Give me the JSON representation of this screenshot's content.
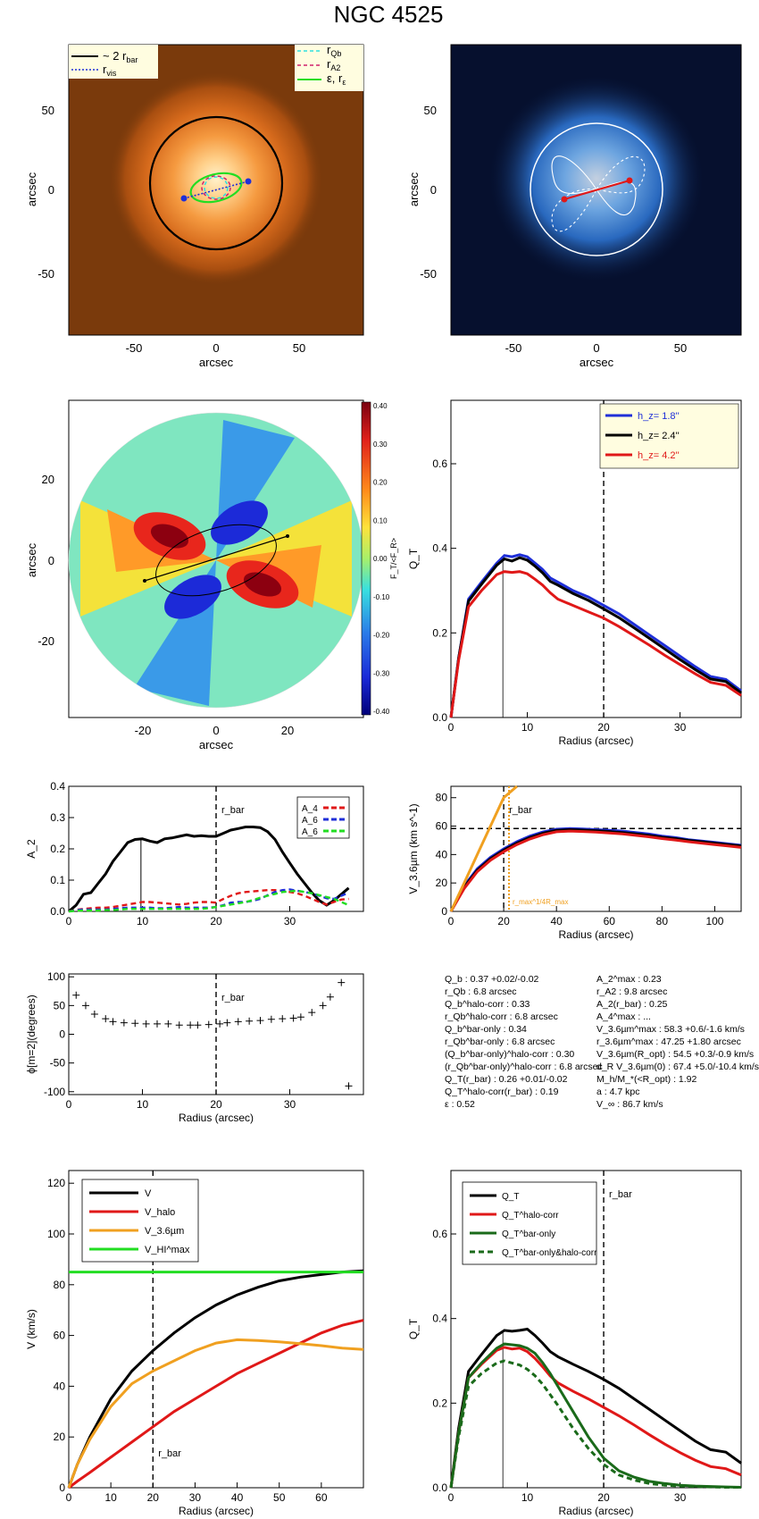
{
  "figure_title": "NGC 4525",
  "colors": {
    "black": "#000000",
    "blue": "#1f2fd8",
    "red": "#e01818",
    "green": "#22dd22",
    "orange": "#f0a020",
    "darkgreen": "#1a6a1a",
    "cyan": "#30e0e0",
    "magenta": "#d0206a"
  },
  "panels": {
    "p1": {
      "ylabel": "arcsec",
      "xlabel": "arcsec",
      "xticks": [
        "-50",
        "0",
        "50"
      ],
      "yticks": [
        "50",
        "0",
        "-50"
      ],
      "legend_left": [
        "~ 2 r",
        "bar",
        "r",
        "vis"
      ],
      "legend_right": [
        "r",
        "Qb",
        "r",
        "A2",
        "ε, r",
        "ε"
      ]
    },
    "p2": {
      "ylabel": "arcsec",
      "xlabel": "arcsec",
      "xticks": [
        "-50",
        "0",
        "50"
      ],
      "yticks": [
        "50",
        "0",
        "-50"
      ]
    },
    "p3": {
      "ylabel": "arcsec",
      "xlabel": "arcsec",
      "xticks": [
        "-20",
        "0",
        "20"
      ],
      "yticks": [
        "20",
        "0",
        "-20"
      ],
      "colorbar_ticks": [
        "0.40",
        "0.30",
        "0.20",
        "0.10",
        "0.00",
        "-0.10",
        "-0.20",
        "-0.30",
        "-0.40"
      ],
      "colorbar_label": "F_T/<F_R>"
    },
    "p7_stats_left": [
      "Q_b :  0.37 +0.02/-0.02",
      "r_Qb :   6.8  arcsec",
      "Q_b^halo-corr :  0.33",
      "r_Qb^halo-corr :  6.8 arcsec",
      "Q_b^bar-only :  0.34",
      "r_Qb^bar-only :  6.8 arcsec",
      "(Q_b^bar-only)^halo-corr :  0.30",
      "(r_Qb^bar-only)^halo-corr :  6.8 arcsec",
      "Q_T(r_bar) :  0.26 +0.01/-0.02",
      "Q_T^halo-corr(r_bar) :  0.19",
      "ε :  0.52"
    ],
    "p7_stats_right": [
      "A_2^max :  0.23",
      "r_A2 :  9.8 arcsec",
      "A_2(r_bar) :  0.25",
      "A_4^max : ...",
      "V_3.6µm^max :  58.3 +0.6/-1.6 km/s",
      "r_3.6µm^max :  47.25 +1.80 arcsec",
      "V_3.6µm(R_opt) :  54.5 +0.3/-0.9 km/s",
      "d_R V_3.6µm(0) :  67.4 +5.0/-10.4 km/s/kpc",
      "M_h/M_*(<R_opt) :  1.92",
      "a :  4.7 kpc",
      "V_∞ :  86.7 km/s"
    ]
  },
  "chart_data": [
    {
      "type": "line",
      "panel": "QT vs radius (scale heights)",
      "xlabel": "Radius (arcsec)",
      "ylabel": "Q_T",
      "xlim": [
        0,
        38
      ],
      "ylim": [
        0,
        0.75
      ],
      "xticks": [
        0,
        10,
        20,
        30
      ],
      "yticks": [
        0.0,
        0.2,
        0.4,
        0.6
      ],
      "rbar": 20,
      "rbar_label": "r_bar",
      "qb_radius": 6.8,
      "x": [
        0,
        1,
        2.3,
        4,
        6,
        7,
        8,
        9,
        10,
        11,
        12,
        13,
        14,
        16,
        18,
        20,
        22,
        24,
        26,
        28,
        30,
        32,
        34,
        36,
        38
      ],
      "series": [
        {
          "name": "h_z= 1.8''",
          "color": "#1f2fd8",
          "values": [
            0,
            0.14,
            0.28,
            0.32,
            0.365,
            0.383,
            0.38,
            0.385,
            0.38,
            0.365,
            0.35,
            0.33,
            0.32,
            0.3,
            0.285,
            0.265,
            0.245,
            0.22,
            0.195,
            0.17,
            0.145,
            0.12,
            0.097,
            0.09,
            0.063
          ]
        },
        {
          "name": "h_z= 2.4''",
          "color": "#000000",
          "values": [
            0,
            0.14,
            0.275,
            0.315,
            0.36,
            0.375,
            0.37,
            0.378,
            0.372,
            0.358,
            0.342,
            0.322,
            0.313,
            0.293,
            0.277,
            0.257,
            0.236,
            0.212,
            0.187,
            0.162,
            0.137,
            0.113,
            0.091,
            0.085,
            0.058
          ]
        },
        {
          "name": "h_z= 4.2''",
          "color": "#e01818",
          "values": [
            0,
            0.135,
            0.262,
            0.3,
            0.338,
            0.345,
            0.343,
            0.345,
            0.34,
            0.327,
            0.313,
            0.295,
            0.28,
            0.265,
            0.25,
            0.235,
            0.215,
            0.193,
            0.171,
            0.147,
            0.125,
            0.103,
            0.083,
            0.076,
            0.052
          ]
        }
      ]
    },
    {
      "type": "line",
      "panel": "Fourier amplitudes",
      "xlabel": "",
      "ylabel": "A_2",
      "xlim": [
        0,
        40
      ],
      "ylim": [
        0,
        0.4
      ],
      "xticks": [
        0,
        10,
        20,
        30
      ],
      "yticks": [
        0.0,
        0.1,
        0.2,
        0.3,
        0.4
      ],
      "rbar": 20,
      "rbar_label": "r_bar",
      "a2_radius": 9.8,
      "x": [
        0,
        1,
        2,
        3,
        4,
        5,
        6,
        7,
        8,
        9,
        10,
        11,
        12,
        13,
        14,
        15,
        16,
        17,
        18,
        19,
        20,
        21,
        22,
        23,
        24,
        25,
        26,
        27,
        28,
        29,
        30,
        31,
        32,
        33,
        34,
        35,
        36,
        37,
        38
      ],
      "series": [
        {
          "name": "A_2",
          "color": "#000000",
          "values": [
            0,
            0.02,
            0.055,
            0.06,
            0.09,
            0.12,
            0.16,
            0.19,
            0.22,
            0.23,
            0.232,
            0.225,
            0.22,
            0.232,
            0.235,
            0.24,
            0.245,
            0.24,
            0.242,
            0.24,
            0.24,
            0.25,
            0.26,
            0.265,
            0.27,
            0.27,
            0.268,
            0.255,
            0.23,
            0.19,
            0.155,
            0.12,
            0.09,
            0.06,
            0.035,
            0.02,
            0.035,
            0.055,
            0.075
          ]
        },
        {
          "name": "A_4",
          "color": "#e01818",
          "values": [
            0,
            0.005,
            0.008,
            0.01,
            0.012,
            0.012,
            0.014,
            0.018,
            0.022,
            0.026,
            0.03,
            0.03,
            0.028,
            0.026,
            0.024,
            0.022,
            0.024,
            0.028,
            0.03,
            0.03,
            0.028,
            0.04,
            0.05,
            0.058,
            0.062,
            0.064,
            0.066,
            0.068,
            0.068,
            0.066,
            0.062,
            0.058,
            0.05,
            0.04,
            0.03,
            0.022,
            0.03,
            0.038,
            0.04
          ]
        },
        {
          "name": "A_6",
          "color": "#1f2fd8",
          "values": [
            0,
            0.004,
            0.006,
            0.006,
            0.006,
            0.006,
            0.008,
            0.01,
            0.012,
            0.012,
            0.012,
            0.012,
            0.01,
            0.01,
            0.012,
            0.014,
            0.012,
            0.012,
            0.012,
            0.012,
            0.014,
            0.02,
            0.028,
            0.03,
            0.03,
            0.034,
            0.04,
            0.052,
            0.062,
            0.068,
            0.07,
            0.066,
            0.062,
            0.058,
            0.05,
            0.042,
            0.04,
            0.05,
            0.06
          ]
        },
        {
          "name": "A_6",
          "color": "#22dd22",
          "values": [
            0,
            0.002,
            0.003,
            0.003,
            0.003,
            0.004,
            0.004,
            0.006,
            0.008,
            0.008,
            0.008,
            0.008,
            0.008,
            0.008,
            0.008,
            0.008,
            0.008,
            0.008,
            0.008,
            0.01,
            0.014,
            0.018,
            0.022,
            0.026,
            0.03,
            0.036,
            0.044,
            0.05,
            0.056,
            0.062,
            0.064,
            0.066,
            0.062,
            0.058,
            0.052,
            0.046,
            0.04,
            0.03,
            0.02
          ]
        }
      ]
    },
    {
      "type": "line",
      "panel": "Rotation curve 3.6um",
      "xlabel": "Radius (arcsec)",
      "ylabel": "V_3.6µm (km s^-1)",
      "xlim": [
        0,
        110
      ],
      "ylim": [
        0,
        88
      ],
      "xticks": [
        0,
        20,
        40,
        60,
        80,
        100
      ],
      "yticks": [
        0,
        20,
        40,
        60,
        80
      ],
      "rbar": 20,
      "rbar_label": "r_bar",
      "vmax": 58.3,
      "rmax_line": 22,
      "rmax_label": "r_max^1/4R_max",
      "x": [
        0,
        5,
        10,
        15,
        20,
        25,
        30,
        35,
        40,
        45,
        50,
        55,
        60,
        65,
        70,
        75,
        80,
        85,
        90,
        95,
        100,
        105,
        110
      ],
      "series": [
        {
          "name": "V_3.6µm",
          "color": "#1f2fd8",
          "values": [
            0,
            18,
            30,
            38,
            44,
            49,
            53,
            56,
            57.8,
            58.3,
            58,
            57.5,
            57,
            56.5,
            55.5,
            54.5,
            53,
            52,
            50.5,
            49.5,
            48.5,
            47.5,
            46.5
          ]
        },
        {
          "name": "V_3.6µm",
          "color": "#000000",
          "values": [
            0,
            17,
            29,
            37,
            43,
            48,
            52,
            55,
            57,
            57.5,
            57.2,
            56.8,
            56.2,
            55.5,
            54.5,
            53.5,
            52.2,
            51.2,
            50,
            49,
            48,
            47,
            46
          ]
        },
        {
          "name": "V_3.6µm",
          "color": "#e01818",
          "values": [
            0,
            16,
            28,
            36,
            42,
            47,
            51,
            54,
            56,
            56.5,
            56.2,
            55.8,
            55.2,
            54.5,
            53.5,
            52.5,
            51.2,
            50.2,
            49,
            48,
            47,
            46,
            45
          ]
        },
        {
          "name": "dRV(0)",
          "color": "#f0a020",
          "values": [
            0,
            20,
            40,
            60,
            80,
            100,
            null,
            null,
            null,
            null,
            null,
            null,
            null,
            null,
            null,
            null,
            null,
            null,
            null,
            null,
            null,
            null,
            null
          ]
        }
      ]
    },
    {
      "type": "scatter",
      "panel": "Bar phase",
      "xlabel": "Radius (arcsec)",
      "ylabel": "ϕ[m=2](degrees)",
      "xlim": [
        0,
        40
      ],
      "ylim": [
        -105,
        105
      ],
      "xticks": [
        0,
        10,
        20,
        30
      ],
      "yticks": [
        100,
        50,
        0,
        -50,
        -100
      ],
      "rbar": 20,
      "rbar_label": "r_bar",
      "x": [
        1,
        2.3,
        3.5,
        5,
        6,
        7.5,
        9,
        10.5,
        12,
        13.5,
        15,
        16.5,
        17.5,
        19,
        20.5,
        21.5,
        23,
        24.5,
        26,
        27.5,
        29,
        30.5,
        31.5,
        33,
        34.5,
        35.5,
        37,
        38
      ],
      "values": [
        68,
        50,
        35,
        27,
        22,
        20,
        19,
        18,
        18,
        18,
        16,
        16,
        16,
        17,
        18,
        20,
        22,
        23,
        24,
        26,
        27,
        28,
        30,
        38,
        50,
        65,
        90,
        -90
      ]
    },
    {
      "type": "line",
      "panel": "Rotation curve decomposition",
      "xlabel": "Radius (arcsec)",
      "ylabel": "V (km/s)",
      "xlim": [
        0,
        70
      ],
      "ylim": [
        0,
        125
      ],
      "xticks": [
        0,
        10,
        20,
        30,
        40,
        50,
        60
      ],
      "yticks": [
        0,
        20,
        40,
        60,
        80,
        100,
        120
      ],
      "rbar": 20,
      "rbar_label": "r_bar",
      "x": [
        0,
        2,
        5,
        10,
        15,
        20,
        25,
        30,
        35,
        40,
        45,
        50,
        55,
        60,
        65,
        70
      ],
      "series": [
        {
          "name": "V",
          "color": "#000000",
          "values": [
            0,
            9,
            20,
            35,
            46,
            54,
            61,
            67,
            72,
            76,
            79,
            81.5,
            83,
            84,
            85,
            85.5
          ]
        },
        {
          "name": "V_halo",
          "color": "#e01818",
          "values": [
            0,
            2.5,
            6,
            12,
            18,
            24,
            30,
            35,
            40,
            45,
            49,
            53,
            57,
            61,
            64,
            66
          ]
        },
        {
          "name": "V_3.6µm",
          "color": "#f0a020",
          "values": [
            0,
            9,
            19,
            32,
            41,
            46,
            50,
            54,
            57,
            58.3,
            58,
            57.5,
            56.8,
            56,
            55,
            54.5
          ]
        },
        {
          "name": "V_HI^max",
          "color": "#22dd22",
          "values": [
            85,
            85,
            85,
            85,
            85,
            85,
            85,
            85,
            85,
            85,
            85,
            85,
            85,
            85,
            85,
            85
          ]
        }
      ]
    },
    {
      "type": "line",
      "panel": "QT halo corrected",
      "xlabel": "Radius (arcsec)",
      "ylabel": "Q_T",
      "xlim": [
        0,
        38
      ],
      "ylim": [
        0,
        0.75
      ],
      "xticks": [
        0,
        10,
        20,
        30
      ],
      "yticks": [
        0.0,
        0.2,
        0.4,
        0.6
      ],
      "rbar": 20,
      "rbar_label": "r_bar",
      "qb_radius": 6.8,
      "x": [
        0,
        1,
        2.3,
        4,
        6,
        7,
        8,
        9,
        10,
        11,
        12,
        13,
        14,
        16,
        18,
        20,
        22,
        24,
        26,
        28,
        30,
        32,
        34,
        36,
        38
      ],
      "series": [
        {
          "name": "Q_T",
          "color": "#000000",
          "values": [
            0,
            0.14,
            0.275,
            0.315,
            0.36,
            0.372,
            0.37,
            0.372,
            0.375,
            0.36,
            0.342,
            0.322,
            0.31,
            0.292,
            0.275,
            0.256,
            0.235,
            0.21,
            0.185,
            0.16,
            0.135,
            0.11,
            0.09,
            0.084,
            0.058
          ]
        },
        {
          "name": "Q_T^halo-corr",
          "color": "#e01818",
          "values": [
            0,
            0.13,
            0.26,
            0.292,
            0.325,
            0.332,
            0.328,
            0.33,
            0.322,
            0.306,
            0.286,
            0.264,
            0.248,
            0.228,
            0.21,
            0.19,
            0.17,
            0.148,
            0.125,
            0.103,
            0.083,
            0.065,
            0.05,
            0.045,
            0.03
          ]
        },
        {
          "name": "Q_T^bar-only",
          "color": "#1a6a1a",
          "values": [
            0,
            0.13,
            0.26,
            0.295,
            0.33,
            0.34,
            0.338,
            0.336,
            0.33,
            0.318,
            0.296,
            0.27,
            0.24,
            0.18,
            0.12,
            0.07,
            0.04,
            0.025,
            0.015,
            0.01,
            0.006,
            0.004,
            0.003,
            0.002,
            0.001
          ]
        },
        {
          "name": "Q_T^bar-only&halo-corr",
          "color": "#1a6a1a",
          "dashed": true,
          "values": [
            0,
            0.12,
            0.24,
            0.27,
            0.295,
            0.3,
            0.295,
            0.29,
            0.28,
            0.265,
            0.245,
            0.22,
            0.195,
            0.14,
            0.093,
            0.055,
            0.03,
            0.018,
            0.01,
            0.006,
            0.004,
            0.003,
            0.002,
            0.001,
            0.001
          ]
        }
      ]
    }
  ]
}
